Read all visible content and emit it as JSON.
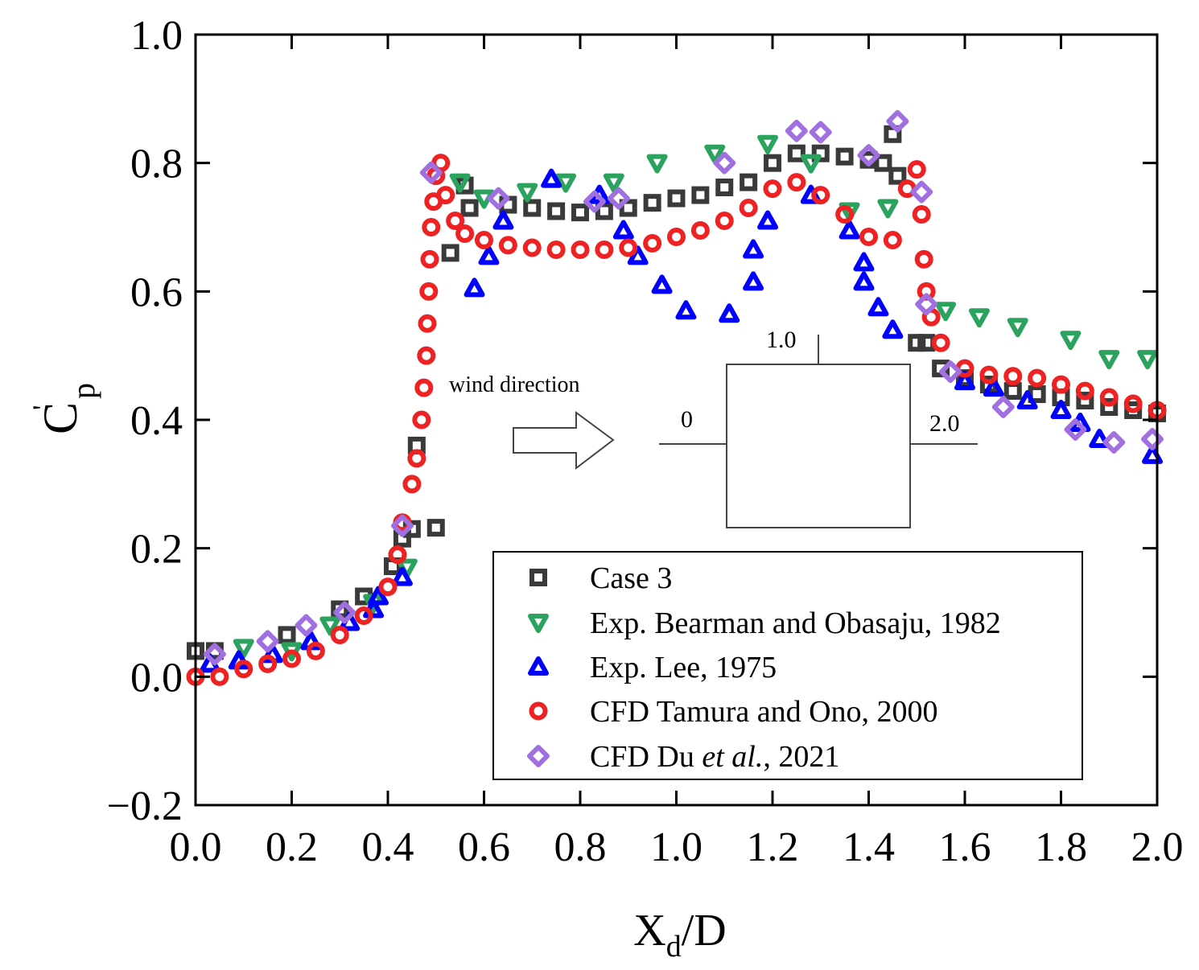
{
  "chart_data": {
    "type": "scatter",
    "title": "",
    "xlabel": {
      "main": "X",
      "sub": "d",
      "rest": "/D"
    },
    "ylabel": {
      "main": "C",
      "sup": "'",
      "sub": "p"
    },
    "xlim": [
      0.0,
      2.0
    ],
    "ylim": [
      -0.2,
      1.0
    ],
    "xticks": [
      "0.0",
      "0.2",
      "0.4",
      "0.6",
      "0.8",
      "1.0",
      "1.2",
      "1.4",
      "1.6",
      "1.8",
      "2.0"
    ],
    "yticks": [
      "−0.2",
      "0.0",
      "0.2",
      "0.4",
      "0.6",
      "0.8",
      "1.0"
    ],
    "legend_position": "lower-right",
    "series": [
      {
        "name": "Case 3",
        "marker": "square",
        "color": "#3a3a3a",
        "x": [
          0.0,
          0.04,
          0.19,
          0.3,
          0.35,
          0.41,
          0.43,
          0.45,
          0.46,
          0.5,
          0.53,
          0.56,
          0.57,
          0.65,
          0.7,
          0.75,
          0.8,
          0.85,
          0.9,
          0.95,
          1.0,
          1.05,
          1.1,
          1.15,
          1.2,
          1.25,
          1.3,
          1.35,
          1.4,
          1.43,
          1.45,
          1.46,
          1.5,
          1.52,
          1.55,
          1.6,
          1.65,
          1.7,
          1.75,
          1.8,
          1.85,
          1.9,
          1.95,
          2.0
        ],
        "y": [
          0.04,
          0.04,
          0.065,
          0.105,
          0.125,
          0.172,
          0.215,
          0.23,
          0.36,
          0.232,
          0.66,
          0.765,
          0.73,
          0.735,
          0.73,
          0.725,
          0.723,
          0.725,
          0.73,
          0.738,
          0.745,
          0.75,
          0.762,
          0.77,
          0.8,
          0.815,
          0.815,
          0.81,
          0.805,
          0.8,
          0.845,
          0.78,
          0.52,
          0.52,
          0.48,
          0.465,
          0.455,
          0.445,
          0.44,
          0.435,
          0.43,
          0.42,
          0.415,
          0.41
        ]
      },
      {
        "name": "Exp. Bearman and Obasaju, 1982",
        "marker": "triangle-down",
        "color": "#2ca25f",
        "x": [
          0.1,
          0.2,
          0.28,
          0.37,
          0.44,
          0.55,
          0.6,
          0.69,
          0.77,
          0.87,
          0.96,
          1.08,
          1.19,
          1.28,
          1.36,
          1.44,
          1.56,
          1.63,
          1.71,
          1.82,
          1.9,
          1.98
        ],
        "y": [
          0.045,
          0.04,
          0.08,
          0.115,
          0.17,
          0.77,
          0.745,
          0.755,
          0.77,
          0.77,
          0.8,
          0.815,
          0.83,
          0.8,
          0.725,
          0.73,
          0.57,
          0.56,
          0.545,
          0.525,
          0.495,
          0.495
        ]
      },
      {
        "name": "Exp. Lee, 1975",
        "marker": "triangle-up",
        "color": "#0000ff",
        "x": [
          0.03,
          0.09,
          0.16,
          0.24,
          0.32,
          0.37,
          0.38,
          0.43,
          0.58,
          0.61,
          0.64,
          0.74,
          0.84,
          0.89,
          0.92,
          0.97,
          1.02,
          1.11,
          1.16,
          1.16,
          1.19,
          1.28,
          1.36,
          1.39,
          1.39,
          1.42,
          1.45,
          1.6,
          1.66,
          1.73,
          1.8,
          1.84,
          1.88,
          1.99
        ],
        "y": [
          0.02,
          0.025,
          0.035,
          0.055,
          0.085,
          0.105,
          0.125,
          0.155,
          0.605,
          0.655,
          0.71,
          0.775,
          0.75,
          0.695,
          0.655,
          0.61,
          0.57,
          0.565,
          0.665,
          0.615,
          0.71,
          0.75,
          0.695,
          0.645,
          0.615,
          0.575,
          0.54,
          0.46,
          0.45,
          0.43,
          0.415,
          0.395,
          0.37,
          0.345
        ]
      },
      {
        "name": "CFD Tamura and Ono, 2000",
        "marker": "circle",
        "color": "#ee2222",
        "x": [
          0.0,
          0.05,
          0.1,
          0.15,
          0.2,
          0.25,
          0.3,
          0.35,
          0.4,
          0.42,
          0.43,
          0.45,
          0.46,
          0.47,
          0.475,
          0.48,
          0.482,
          0.485,
          0.487,
          0.49,
          0.495,
          0.5,
          0.51,
          0.52,
          0.54,
          0.56,
          0.6,
          0.65,
          0.7,
          0.75,
          0.8,
          0.85,
          0.9,
          0.95,
          1.0,
          1.05,
          1.1,
          1.15,
          1.2,
          1.25,
          1.3,
          1.35,
          1.4,
          1.45,
          1.48,
          1.5,
          1.51,
          1.515,
          1.52,
          1.53,
          1.55,
          1.6,
          1.65,
          1.7,
          1.75,
          1.8,
          1.85,
          1.9,
          1.95,
          2.0
        ],
        "y": [
          0.0,
          0.0,
          0.012,
          0.02,
          0.028,
          0.04,
          0.065,
          0.095,
          0.14,
          0.19,
          0.24,
          0.3,
          0.34,
          0.4,
          0.45,
          0.5,
          0.55,
          0.6,
          0.65,
          0.7,
          0.74,
          0.78,
          0.8,
          0.75,
          0.71,
          0.69,
          0.68,
          0.672,
          0.668,
          0.665,
          0.665,
          0.665,
          0.668,
          0.675,
          0.685,
          0.695,
          0.71,
          0.73,
          0.76,
          0.77,
          0.75,
          0.72,
          0.685,
          0.68,
          0.76,
          0.79,
          0.72,
          0.65,
          0.6,
          0.56,
          0.52,
          0.48,
          0.47,
          0.468,
          0.465,
          0.455,
          0.445,
          0.435,
          0.425,
          0.415
        ]
      },
      {
        "name": "CFD Du et al., 2021",
        "marker": "diamond",
        "color": "#a070e0",
        "x": [
          0.04,
          0.15,
          0.23,
          0.31,
          0.43,
          0.49,
          0.63,
          0.83,
          0.88,
          1.1,
          1.25,
          1.3,
          1.4,
          1.46,
          1.51,
          1.52,
          1.57,
          1.68,
          1.83,
          1.91,
          1.99
        ],
        "y": [
          0.035,
          0.055,
          0.08,
          0.1,
          0.235,
          0.785,
          0.745,
          0.74,
          0.745,
          0.8,
          0.85,
          0.848,
          0.812,
          0.865,
          0.755,
          0.58,
          0.475,
          0.42,
          0.385,
          0.365,
          0.37
        ]
      }
    ],
    "legend": [
      {
        "label_main": "Case 3",
        "label_italic": "",
        "label_tail": ""
      },
      {
        "label_main": "Exp. Bearman and Obasaju, 1982",
        "label_italic": "",
        "label_tail": ""
      },
      {
        "label_main": "Exp. Lee, 1975",
        "label_italic": "",
        "label_tail": ""
      },
      {
        "label_main": "CFD Tamura and Ono, 2000",
        "label_italic": "",
        "label_tail": ""
      },
      {
        "label_main": "CFD Du ",
        "label_italic": "et al.",
        "label_tail": ", 2021"
      }
    ],
    "annotation": {
      "wind_label": "wind direction",
      "label_start": "0",
      "label_top": "1.0",
      "label_end": "2.0"
    }
  }
}
